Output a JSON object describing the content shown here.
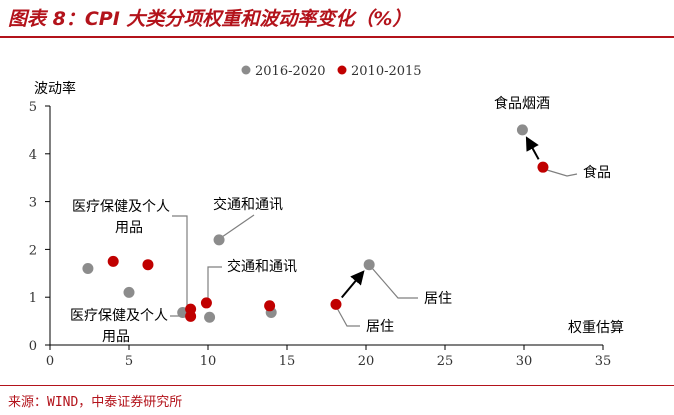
{
  "figure": {
    "title": "图表 8：CPI 大类分项权重和波动率变化（%）",
    "source": "来源：WIND，中泰证券研究所"
  },
  "chart_data": {
    "type": "scatter",
    "title": "图表 8：CPI 大类分项权重和波动率变化（%）",
    "xlabel": "权重估算",
    "ylabel": "波动率",
    "xlim": [
      0,
      35
    ],
    "ylim": [
      0,
      5
    ],
    "xticks": [
      0,
      5,
      10,
      15,
      20,
      25,
      30,
      35
    ],
    "yticks": [
      0,
      1,
      2,
      3,
      4,
      5
    ],
    "grid": false,
    "legend_position": "top-center",
    "series": [
      {
        "name": "2016-2020",
        "color": "#8c8c8c",
        "points": [
          {
            "x": 2.4,
            "y": 1.6
          },
          {
            "x": 5.0,
            "y": 1.1
          },
          {
            "x": 8.4,
            "y": 0.68
          },
          {
            "x": 10.1,
            "y": 0.58
          },
          {
            "x": 10.7,
            "y": 2.2
          },
          {
            "x": 14.0,
            "y": 0.68
          },
          {
            "x": 20.2,
            "y": 1.68
          },
          {
            "x": 29.9,
            "y": 4.5
          }
        ]
      },
      {
        "name": "2010-2015",
        "color": "#c00000",
        "points": [
          {
            "x": 4.0,
            "y": 1.75
          },
          {
            "x": 6.2,
            "y": 1.68
          },
          {
            "x": 8.9,
            "y": 0.6
          },
          {
            "x": 8.9,
            "y": 0.75
          },
          {
            "x": 9.9,
            "y": 0.88
          },
          {
            "x": 13.9,
            "y": 0.82
          },
          {
            "x": 18.1,
            "y": 0.85
          },
          {
            "x": 31.2,
            "y": 3.72
          }
        ]
      }
    ],
    "annotations": [
      {
        "text": "食品烟酒",
        "x": 29.9,
        "y": 4.5
      },
      {
        "text": "食品",
        "x": 31.2,
        "y": 3.72
      },
      {
        "text": "交通和通讯",
        "x": 10.7,
        "y": 2.2
      },
      {
        "text": "交通和通讯",
        "x": 9.9,
        "y": 0.88
      },
      {
        "text": "医疗保健及个人",
        "x": 8.9,
        "y": 0.75
      },
      {
        "text": "用品",
        "x": 8.9,
        "y": 0.75
      },
      {
        "text": "医疗保健及个人",
        "x": 8.9,
        "y": 0.6
      },
      {
        "text": "用品",
        "x": 8.9,
        "y": 0.6
      },
      {
        "text": "居住",
        "x": 20.2,
        "y": 1.68
      },
      {
        "text": "居住",
        "x": 18.1,
        "y": 0.85
      }
    ],
    "arrows": [
      {
        "from": {
          "x": 18.1,
          "y": 0.85
        },
        "to": {
          "x": 20.2,
          "y": 1.68
        }
      },
      {
        "from": {
          "x": 31.2,
          "y": 3.72
        },
        "to": {
          "x": 29.9,
          "y": 4.5
        }
      }
    ]
  }
}
